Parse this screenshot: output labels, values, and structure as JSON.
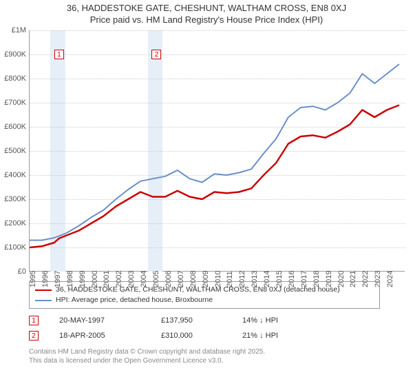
{
  "title_line1": "36, HADDESTOKE GATE, CHESHUNT, WALTHAM CROSS, EN8 0XJ",
  "title_line2": "Price paid vs. HM Land Registry's House Price Index (HPI)",
  "chart": {
    "type": "line",
    "x_range": [
      1995,
      2025.5
    ],
    "y_range": [
      0,
      1000000
    ],
    "y_ticks": [
      0,
      100000,
      200000,
      300000,
      400000,
      500000,
      600000,
      700000,
      800000,
      900000,
      1000000
    ],
    "y_tick_labels": [
      "£0",
      "£100K",
      "£200K",
      "£300K",
      "£400K",
      "£500K",
      "£600K",
      "£700K",
      "£800K",
      "£900K",
      "£1M"
    ],
    "x_ticks": [
      1995,
      1996,
      1997,
      1998,
      1999,
      2000,
      2001,
      2002,
      2003,
      2004,
      2005,
      2006,
      2007,
      2008,
      2009,
      2010,
      2011,
      2012,
      2013,
      2014,
      2015,
      2016,
      2017,
      2018,
      2019,
      2020,
      2021,
      2022,
      2023,
      2024
    ],
    "shaded_bands": [
      {
        "from": 1996.7,
        "to": 1997.9
      },
      {
        "from": 2004.6,
        "to": 2005.8
      }
    ],
    "grid_color": "#cccccc",
    "background_color": "#ffffff",
    "axis_color": "#999999",
    "label_color": "#555555",
    "label_fontsize": 11,
    "series": [
      {
        "name": "property",
        "color": "#cc0000",
        "width": 2.5,
        "points": [
          [
            1995,
            100000
          ],
          [
            1996,
            105000
          ],
          [
            1997,
            120000
          ],
          [
            1997.4,
            137950
          ],
          [
            1998,
            150000
          ],
          [
            1999,
            170000
          ],
          [
            2000,
            200000
          ],
          [
            2001,
            230000
          ],
          [
            2002,
            270000
          ],
          [
            2003,
            300000
          ],
          [
            2004,
            330000
          ],
          [
            2005,
            310000
          ],
          [
            2005.3,
            310000
          ],
          [
            2006,
            310000
          ],
          [
            2007,
            335000
          ],
          [
            2008,
            310000
          ],
          [
            2009,
            300000
          ],
          [
            2010,
            330000
          ],
          [
            2011,
            325000
          ],
          [
            2012,
            330000
          ],
          [
            2013,
            345000
          ],
          [
            2014,
            400000
          ],
          [
            2015,
            450000
          ],
          [
            2016,
            530000
          ],
          [
            2017,
            560000
          ],
          [
            2018,
            565000
          ],
          [
            2019,
            555000
          ],
          [
            2020,
            580000
          ],
          [
            2021,
            610000
          ],
          [
            2022,
            670000
          ],
          [
            2023,
            640000
          ],
          [
            2024,
            670000
          ],
          [
            2025,
            690000
          ]
        ]
      },
      {
        "name": "hpi",
        "color": "#6a8fc7",
        "width": 2,
        "points": [
          [
            1995,
            130000
          ],
          [
            1996,
            130000
          ],
          [
            1997,
            140000
          ],
          [
            1998,
            160000
          ],
          [
            1999,
            190000
          ],
          [
            2000,
            225000
          ],
          [
            2001,
            255000
          ],
          [
            2002,
            300000
          ],
          [
            2003,
            340000
          ],
          [
            2004,
            375000
          ],
          [
            2005,
            385000
          ],
          [
            2006,
            395000
          ],
          [
            2007,
            420000
          ],
          [
            2008,
            385000
          ],
          [
            2009,
            370000
          ],
          [
            2010,
            405000
          ],
          [
            2011,
            400000
          ],
          [
            2012,
            410000
          ],
          [
            2013,
            425000
          ],
          [
            2014,
            490000
          ],
          [
            2015,
            550000
          ],
          [
            2016,
            640000
          ],
          [
            2017,
            680000
          ],
          [
            2018,
            685000
          ],
          [
            2019,
            670000
          ],
          [
            2020,
            700000
          ],
          [
            2021,
            740000
          ],
          [
            2022,
            820000
          ],
          [
            2023,
            780000
          ],
          [
            2024,
            820000
          ],
          [
            2025,
            860000
          ]
        ]
      }
    ],
    "markers": [
      {
        "label": "1",
        "x": 1997.4,
        "y": 900000
      },
      {
        "label": "2",
        "x": 2005.3,
        "y": 900000
      }
    ]
  },
  "legend": {
    "items": [
      {
        "color": "#cc0000",
        "label": "36, HADDESTOKE GATE, CHESHUNT, WALTHAM CROSS, EN8 0XJ (detached house)"
      },
      {
        "color": "#6a8fc7",
        "label": "HPI: Average price, detached house, Broxbourne"
      }
    ]
  },
  "sales": [
    {
      "marker": "1",
      "date": "20-MAY-1997",
      "price": "£137,950",
      "diff": "14% ↓ HPI"
    },
    {
      "marker": "2",
      "date": "18-APR-2005",
      "price": "£310,000",
      "diff": "21% ↓ HPI"
    }
  ],
  "footer_line1": "Contains HM Land Registry data © Crown copyright and database right 2025.",
  "footer_line2": "This data is licensed under the Open Government Licence v3.0."
}
